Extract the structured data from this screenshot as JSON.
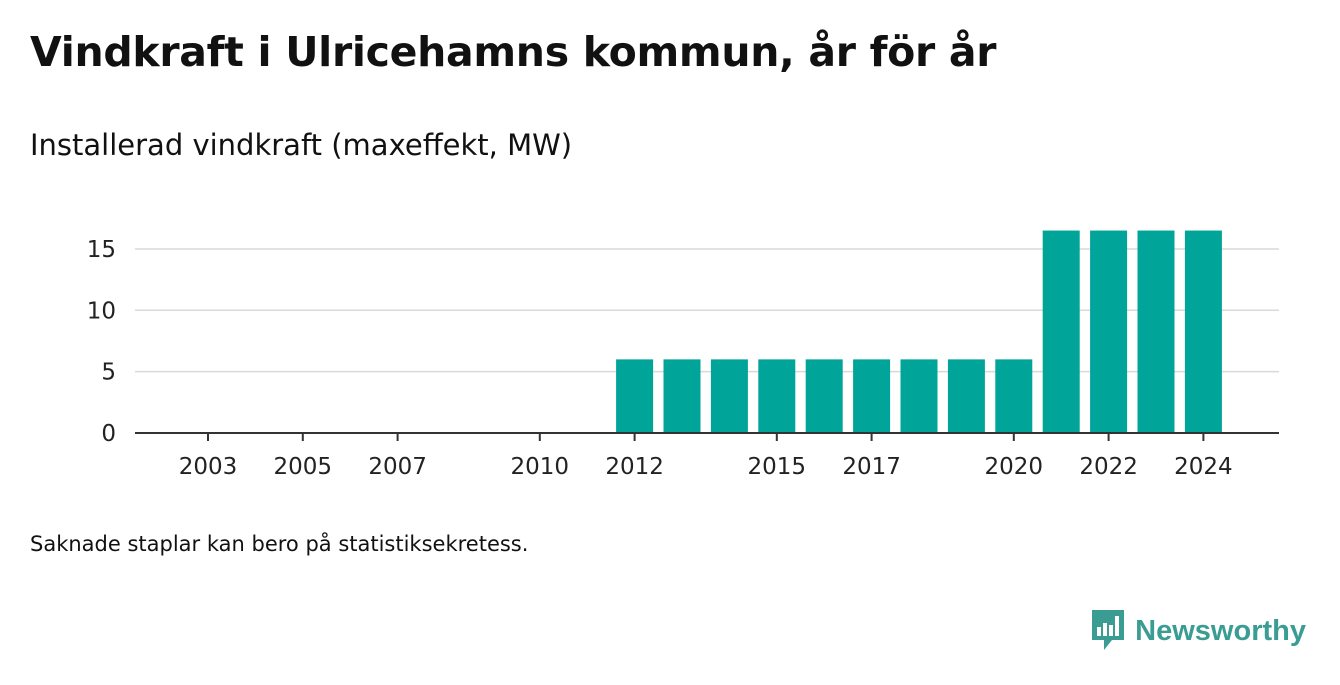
{
  "title": "Vindkraft i Ulricehamns kommun, år för år",
  "subtitle": "Installerad vindkraft (maxeffekt, MW)",
  "note": "Saknade staplar kan bero på statistiksekretess.",
  "brand": {
    "name": "Newsworthy",
    "icon": "newsworthy-logo-icon",
    "color": "#3a9c92"
  },
  "chart_data": {
    "type": "bar",
    "x": [
      2012,
      2013,
      2014,
      2015,
      2016,
      2017,
      2018,
      2019,
      2020,
      2021,
      2022,
      2023,
      2024
    ],
    "values": [
      6,
      6,
      6,
      6,
      6,
      6,
      6,
      6,
      6,
      16.5,
      16.5,
      16.5,
      16.5
    ],
    "xlim": [
      2001.9,
      2025.5
    ],
    "x_ticks": [
      2003,
      2005,
      2007,
      2010,
      2012,
      2015,
      2017,
      2020,
      2022,
      2024
    ],
    "y_ticks": [
      0,
      5,
      10,
      15
    ],
    "ylim": [
      0,
      17
    ],
    "grid": true,
    "bar_color": "#00a499",
    "xlabel": "",
    "ylabel": ""
  }
}
